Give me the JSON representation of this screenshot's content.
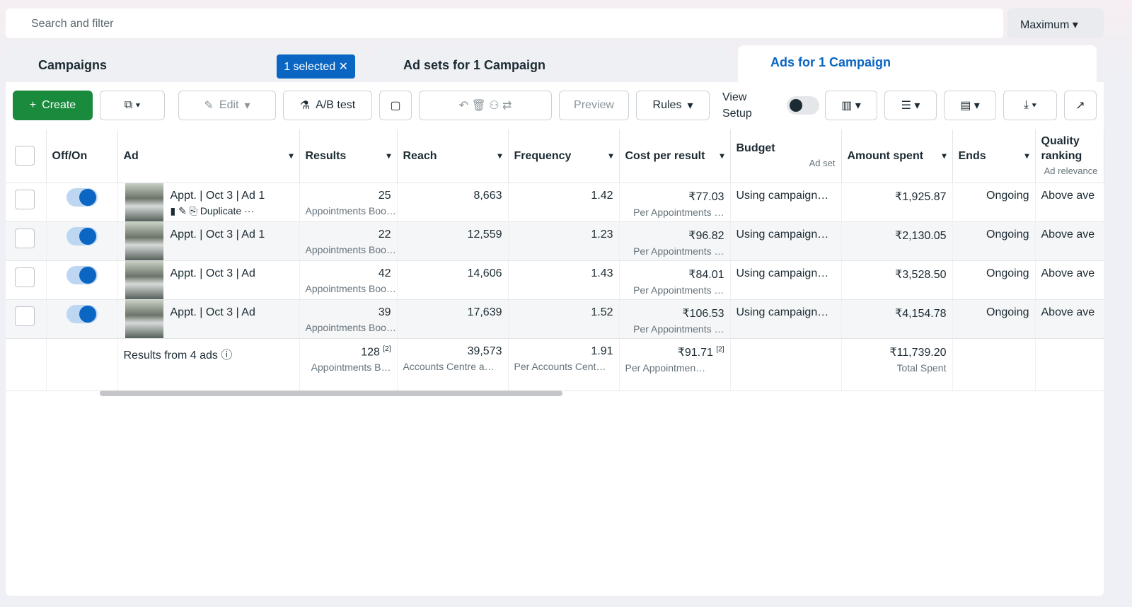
{
  "search": {
    "placeholder": "Search and filter",
    "date_range": "Maximum"
  },
  "tabs": [
    {
      "label": "Campaigns",
      "badge": "1 selected"
    },
    {
      "label": "Ad sets for 1 Campaign"
    },
    {
      "label": "Ads for 1 Campaign"
    }
  ],
  "toolbar": {
    "create": "Create",
    "edit": "Edit",
    "ab_test": "A/B test",
    "preview": "Preview",
    "rules": "Rules",
    "view_setup": "View Setup"
  },
  "table": {
    "headers": [
      {
        "label": "Off/On"
      },
      {
        "label": "Ad"
      },
      {
        "label": "Results"
      },
      {
        "label": "Reach"
      },
      {
        "label": "Frequency"
      },
      {
        "label": "Cost per result"
      },
      {
        "label": "Budget",
        "sub": "Ad set"
      },
      {
        "label": "Amount spent"
      },
      {
        "label": "Ends"
      },
      {
        "label": "Quality ranking",
        "sub": "Ad relevance"
      }
    ],
    "rows": [
      {
        "ad": "Appt. | Oct 3 | Ad 1",
        "action": "Duplicate",
        "results": "25",
        "results_sub": "Appointments Boo…",
        "reach": "8,663",
        "frequency": "1.42",
        "cost": "₹77.03",
        "cost_sub": "Per Appointments …",
        "budget": "Using campaign…",
        "spent": "₹1,925.87",
        "ends": "Ongoing",
        "quality": "Above ave"
      },
      {
        "ad": "Appt. | Oct 3 | Ad 1",
        "results": "22",
        "results_sub": "Appointments Boo…",
        "reach": "12,559",
        "frequency": "1.23",
        "cost": "₹96.82",
        "cost_sub": "Per Appointments …",
        "budget": "Using campaign…",
        "spent": "₹2,130.05",
        "ends": "Ongoing",
        "quality": "Above ave"
      },
      {
        "ad": "Appt. | Oct 3 | Ad",
        "results": "42",
        "results_sub": "Appointments Boo…",
        "reach": "14,606",
        "frequency": "1.43",
        "cost": "₹84.01",
        "cost_sub": "Per Appointments …",
        "budget": "Using campaign…",
        "spent": "₹3,528.50",
        "ends": "Ongoing",
        "quality": "Above ave"
      },
      {
        "ad": "Appt. | Oct 3 | Ad",
        "results": "39",
        "results_sub": "Appointments Boo…",
        "reach": "17,639",
        "frequency": "1.52",
        "cost": "₹106.53",
        "cost_sub": "Per Appointments …",
        "budget": "Using campaign…",
        "spent": "₹4,154.78",
        "ends": "Ongoing",
        "quality": "Above ave"
      }
    ],
    "footer": {
      "label": "Results from 4 ads",
      "results": "128",
      "results_note": "[2]",
      "results_sub": "Appointments B…",
      "reach": "39,573",
      "reach_sub": "Accounts Centre a…",
      "frequency": "1.91",
      "frequency_sub": "Per Accounts Cent…",
      "cost": "₹91.71",
      "cost_note": "[2]",
      "cost_sub": "Per Appointmen…",
      "spent": "₹11,739.20",
      "spent_sub": "Total Spent"
    }
  }
}
